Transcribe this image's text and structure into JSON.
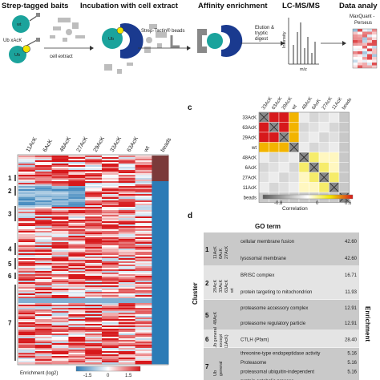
{
  "workflow": {
    "steps": [
      "Strep-tagged baits",
      "Incubation with cell extract",
      "Affinity enrichment",
      "LC-MS/MS",
      "Data analy"
    ],
    "labels": {
      "wt": "wt",
      "ub_xack": "Ub xAcK",
      "ub": "Ub",
      "cell_extract": "cell extract",
      "strep_tactin": "Strep-Tactin® beads",
      "elution": "Elution &",
      "tryptic": "tryptic",
      "digest": "digest",
      "intensity": "Intensity",
      "mz": "m/z",
      "maxquant": "MaxQuant -",
      "perseus": "Perseus"
    }
  },
  "heatmap": {
    "columns": [
      "11AcK",
      "6AcK",
      "48AcK",
      "27AcK",
      "29AcK",
      "33AcK",
      "63AcK",
      "wt",
      "beads"
    ],
    "clusters": [
      "1",
      "2",
      "3",
      "4",
      "5",
      "6",
      "7"
    ],
    "legend_title": "Enrichment (log2)",
    "legend_ticks": [
      "-1.5",
      "0",
      "1.5"
    ]
  },
  "correlation": {
    "panel": "c",
    "labels": [
      "33AcK",
      "63AcK",
      "29AcK",
      "wt",
      "48AcK",
      "6AcK",
      "27AcK",
      "11AcK",
      "beads"
    ],
    "legend_title": "Correlation",
    "legend_ticks": [
      "-0.8",
      "0",
      "0.6"
    ]
  },
  "go_table": {
    "panel": "d",
    "header": "GO term",
    "cluster_label": "Cluster",
    "enrichment_label": "Enrichment",
    "rows": [
      {
        "cluster": "1",
        "baits": [
          "11AcK",
          "6AcK",
          "27AcK"
        ],
        "terms": [
          {
            "name": "cellular membrane fusion",
            "value": "42.60"
          },
          {
            "name": "lysosomal membrane",
            "value": "42.60"
          }
        ]
      },
      {
        "cluster": "2",
        "baits": [
          "29AcK",
          "33AcK",
          "63AcK",
          "wt"
        ],
        "terms": [
          {
            "name": "BRISC complex",
            "value": "16.71"
          },
          {
            "name": "protein targeting to mitochondrion",
            "value": "11.93"
          }
        ]
      },
      {
        "cluster": "5",
        "baits": [
          "48AcK"
        ],
        "terms": [
          {
            "name": "proteasome accessory complex",
            "value": "12.91"
          },
          {
            "name": "proteasome regulatory particle",
            "value": "12.91"
          }
        ]
      },
      {
        "cluster": "6",
        "baits": [
          "Ub general",
          "(except",
          "11AcK)"
        ],
        "terms": [
          {
            "name": "CTLH (Pfam)",
            "value": "28.40"
          }
        ]
      },
      {
        "cluster": "7",
        "baits": [
          "Ub",
          "general"
        ],
        "terms": [
          {
            "name": "threonine-type endopeptidase activity",
            "value": "5.16"
          },
          {
            "name": "Proteasome",
            "value": "5.16"
          },
          {
            "name": "proteasomal ubiquitin-independent",
            "value": "5.16"
          },
          {
            "name": "protein catabolic process",
            "value": ""
          }
        ]
      }
    ]
  },
  "colors": {
    "red": "#d7191c",
    "blue": "#2c7bb6",
    "teal": "#1ba39c",
    "navy": "#1a3a8f",
    "yellow": "#f2e600"
  }
}
